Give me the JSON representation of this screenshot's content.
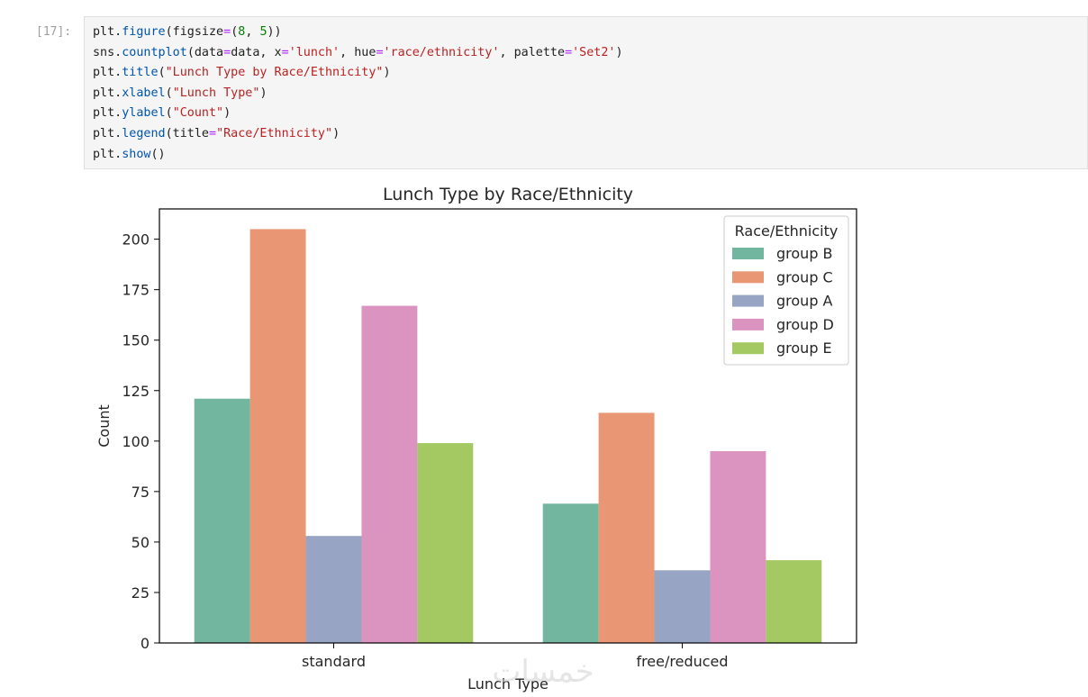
{
  "cell": {
    "prompt": "[17]:",
    "code_lines": [
      [
        {
          "t": "plt.",
          "c": "plain"
        },
        {
          "t": "figure",
          "c": "fn"
        },
        {
          "t": "(figsize",
          "c": "plain"
        },
        {
          "t": "=",
          "c": "op"
        },
        {
          "t": "(",
          "c": "plain"
        },
        {
          "t": "8",
          "c": "num"
        },
        {
          "t": ", ",
          "c": "plain"
        },
        {
          "t": "5",
          "c": "num"
        },
        {
          "t": "))",
          "c": "plain"
        }
      ],
      [
        {
          "t": "sns.",
          "c": "plain"
        },
        {
          "t": "countplot",
          "c": "fn"
        },
        {
          "t": "(data",
          "c": "plain"
        },
        {
          "t": "=",
          "c": "op"
        },
        {
          "t": "data, x",
          "c": "plain"
        },
        {
          "t": "=",
          "c": "op"
        },
        {
          "t": "'lunch'",
          "c": "str"
        },
        {
          "t": ", hue",
          "c": "plain"
        },
        {
          "t": "=",
          "c": "op"
        },
        {
          "t": "'race/ethnicity'",
          "c": "str"
        },
        {
          "t": ", palette",
          "c": "plain"
        },
        {
          "t": "=",
          "c": "op"
        },
        {
          "t": "'Set2'",
          "c": "str"
        },
        {
          "t": ")",
          "c": "plain"
        }
      ],
      [
        {
          "t": "plt.",
          "c": "plain"
        },
        {
          "t": "title",
          "c": "fn"
        },
        {
          "t": "(",
          "c": "plain"
        },
        {
          "t": "\"Lunch Type by Race/Ethnicity\"",
          "c": "str"
        },
        {
          "t": ")",
          "c": "plain"
        }
      ],
      [
        {
          "t": "plt.",
          "c": "plain"
        },
        {
          "t": "xlabel",
          "c": "fn"
        },
        {
          "t": "(",
          "c": "plain"
        },
        {
          "t": "\"Lunch Type\"",
          "c": "str"
        },
        {
          "t": ")",
          "c": "plain"
        }
      ],
      [
        {
          "t": "plt.",
          "c": "plain"
        },
        {
          "t": "ylabel",
          "c": "fn"
        },
        {
          "t": "(",
          "c": "plain"
        },
        {
          "t": "\"Count\"",
          "c": "str"
        },
        {
          "t": ")",
          "c": "plain"
        }
      ],
      [
        {
          "t": "plt.",
          "c": "plain"
        },
        {
          "t": "legend",
          "c": "fn"
        },
        {
          "t": "(title",
          "c": "plain"
        },
        {
          "t": "=",
          "c": "op"
        },
        {
          "t": "\"Race/Ethnicity\"",
          "c": "str"
        },
        {
          "t": ")",
          "c": "plain"
        }
      ],
      [
        {
          "t": "plt.",
          "c": "plain"
        },
        {
          "t": "show",
          "c": "fn"
        },
        {
          "t": "()",
          "c": "plain"
        }
      ]
    ]
  },
  "chart_data": {
    "type": "bar",
    "title": "Lunch Type by Race/Ethnicity",
    "xlabel": "Lunch Type",
    "ylabel": "Count",
    "categories": [
      "standard",
      "free/reduced"
    ],
    "ylim": [
      0,
      215
    ],
    "yticks": [
      0,
      25,
      50,
      75,
      100,
      125,
      150,
      175,
      200
    ],
    "legend_title": "Race/Ethnicity",
    "legend_position": "top-right",
    "grid": false,
    "series": [
      {
        "name": "group B",
        "color": "#73b6a0",
        "values": [
          121,
          69
        ]
      },
      {
        "name": "group C",
        "color": "#e89673",
        "values": [
          205,
          114
        ]
      },
      {
        "name": "group A",
        "color": "#97a4c4",
        "values": [
          53,
          36
        ]
      },
      {
        "name": "group D",
        "color": "#db93c0",
        "values": [
          167,
          95
        ]
      },
      {
        "name": "group E",
        "color": "#a4c963",
        "values": [
          99,
          41
        ]
      }
    ]
  },
  "watermark": "خمسات"
}
